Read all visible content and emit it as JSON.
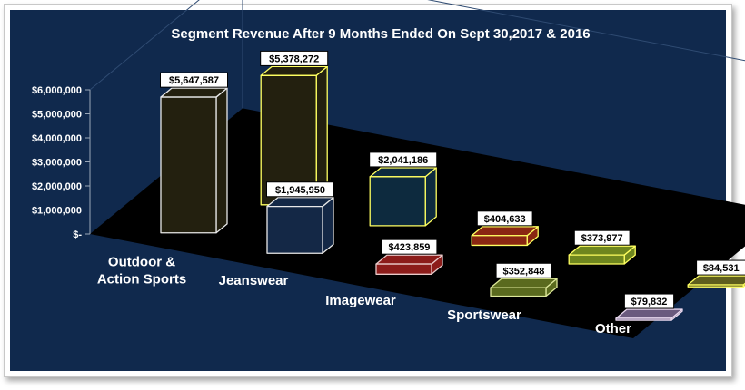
{
  "chart_data": {
    "type": "bar",
    "title": "Segment Revenue After 9 Months Ended On Sept 30,2017 & 2016",
    "categories": [
      [
        "Outdoor &",
        "Action Sports"
      ],
      [
        "Jeanswear"
      ],
      [
        "Imagewear"
      ],
      [
        "Sportswear"
      ],
      [
        "Other"
      ]
    ],
    "series": [
      {
        "values": [
          5647587,
          1945950,
          423859,
          352848,
          79832
        ],
        "colors": [
          "#23200f",
          "#142846",
          "#8c1c1a",
          "#5a6a1e",
          "#6a5a7e"
        ]
      },
      {
        "values": [
          5378272,
          2041186,
          404633,
          373977,
          84531
        ],
        "colors": [
          "#23200f",
          "#0d2a3e",
          "#8a2712",
          "#6e861e",
          "#5e5e1e"
        ]
      }
    ],
    "data_labels": [
      [
        "$5,647,587",
        "$1,945,950",
        "$423,859",
        "$352,848",
        "$79,832"
      ],
      [
        "$5,378,272",
        "$2,041,186",
        "$404,633",
        "$373,977",
        "$84,531"
      ]
    ],
    "edge_colors": [
      [
        "#e8e8e8",
        "#e8e8e8",
        "#e8c8c8",
        "#dde89a",
        "#e8d8ee"
      ],
      [
        "#ffff60",
        "#ffff60",
        "#ffff60",
        "#ffff60",
        "#ffff60"
      ]
    ],
    "yticks": [
      "$6,000,000",
      "$5,000,000",
      "$4,000,000",
      "$3,000,000",
      "$2,000,000",
      "$1,000,000",
      "$-"
    ],
    "ylim": [
      0,
      6000000
    ],
    "xlabel": "",
    "ylabel": "",
    "background": "#10294d",
    "floor_color": "#000000",
    "legend": "none"
  }
}
